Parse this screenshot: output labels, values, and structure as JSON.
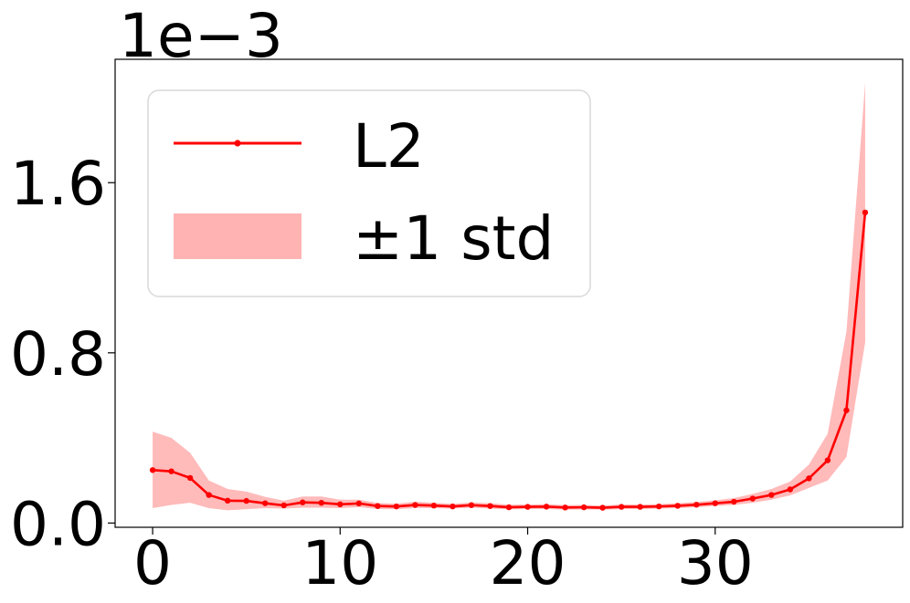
{
  "chart_data": {
    "type": "line",
    "title": "",
    "xlabel": "",
    "ylabel": "",
    "y_scale_label": "1e−3",
    "xlim": [
      -2,
      40
    ],
    "ylim": [
      -2e-05,
      0.00218
    ],
    "x_ticks": [
      0,
      10,
      20,
      30
    ],
    "x_tick_labels": [
      "0",
      "10",
      "20",
      "30"
    ],
    "y_ticks": [
      0.0,
      0.0008,
      0.0016
    ],
    "y_tick_labels": [
      "0.0",
      "0.8",
      "1.6"
    ],
    "grid": false,
    "legend_position": "top-left",
    "colors": {
      "line": "#ff0000",
      "band": "#ffb3b3"
    },
    "series": [
      {
        "name": "L2",
        "x": [
          0,
          1,
          2,
          3,
          4,
          5,
          6,
          7,
          8,
          9,
          10,
          11,
          12,
          13,
          14,
          15,
          16,
          17,
          18,
          19,
          20,
          21,
          22,
          23,
          24,
          25,
          26,
          27,
          28,
          29,
          30,
          31,
          32,
          33,
          34,
          35,
          36,
          37,
          38
        ],
        "values": [
          0.000249,
          0.000243,
          0.000212,
          0.000132,
          0.000105,
          0.000104,
          9.3e-05,
          8.3e-05,
          9.7e-05,
          9.5e-05,
          8.8e-05,
          9.2e-05,
          8e-05,
          7.8e-05,
          8.5e-05,
          8.2e-05,
          7.8e-05,
          8.4e-05,
          8e-05,
          7.4e-05,
          7.6e-05,
          7.7e-05,
          7.3e-05,
          7.4e-05,
          7.2e-05,
          7.6e-05,
          7.6e-05,
          7.8e-05,
          8.1e-05,
          8.6e-05,
          9.3e-05,
          0.0001,
          0.000115,
          0.000132,
          0.000158,
          0.00021,
          0.000295,
          0.00053,
          0.00146
        ]
      }
    ],
    "band": {
      "name": "±1 std",
      "x": [
        0,
        1,
        2,
        3,
        4,
        5,
        6,
        7,
        8,
        9,
        10,
        11,
        12,
        13,
        14,
        15,
        16,
        17,
        18,
        19,
        20,
        21,
        22,
        23,
        24,
        25,
        26,
        27,
        28,
        29,
        30,
        31,
        32,
        33,
        34,
        35,
        36,
        37,
        38
      ],
      "lower": [
        7e-05,
        8.5e-05,
        9.5e-05,
        7e-05,
        6e-05,
        6.5e-05,
        7e-05,
        6.8e-05,
        7.2e-05,
        7.2e-05,
        7e-05,
        7.5e-05,
        6.6e-05,
        6.5e-05,
        7e-05,
        7e-05,
        6.8e-05,
        7.2e-05,
        6.8e-05,
        6.4e-05,
        6.6e-05,
        6.6e-05,
        6.3e-05,
        6.4e-05,
        6.3e-05,
        6.5e-05,
        6.6e-05,
        6.8e-05,
        7e-05,
        7.4e-05,
        8e-05,
        8.5e-05,
        9.5e-05,
        0.00011,
        0.00013,
        0.000165,
        0.0002,
        0.00031,
        0.00085
      ],
      "upper": [
        0.00043,
        0.0004,
        0.00033,
        0.0002,
        0.00016,
        0.000148,
        0.000123,
        0.000105,
        0.000125,
        0.000125,
        0.00011,
        0.00011,
        9.4e-05,
        9.1e-05,
        0.0001,
        9.5e-05,
        9e-05,
        9.7e-05,
        9.3e-05,
        8.6e-05,
        8.7e-05,
        8.9e-05,
        8.4e-05,
        8.5e-05,
        8.2e-05,
        8.7e-05,
        8.7e-05,
        8.9e-05,
        9.3e-05,
        9.9e-05,
        0.000107,
        0.000117,
        0.000137,
        0.00016,
        0.000195,
        0.000275,
        0.00042,
        0.0009,
        0.00207
      ]
    }
  }
}
